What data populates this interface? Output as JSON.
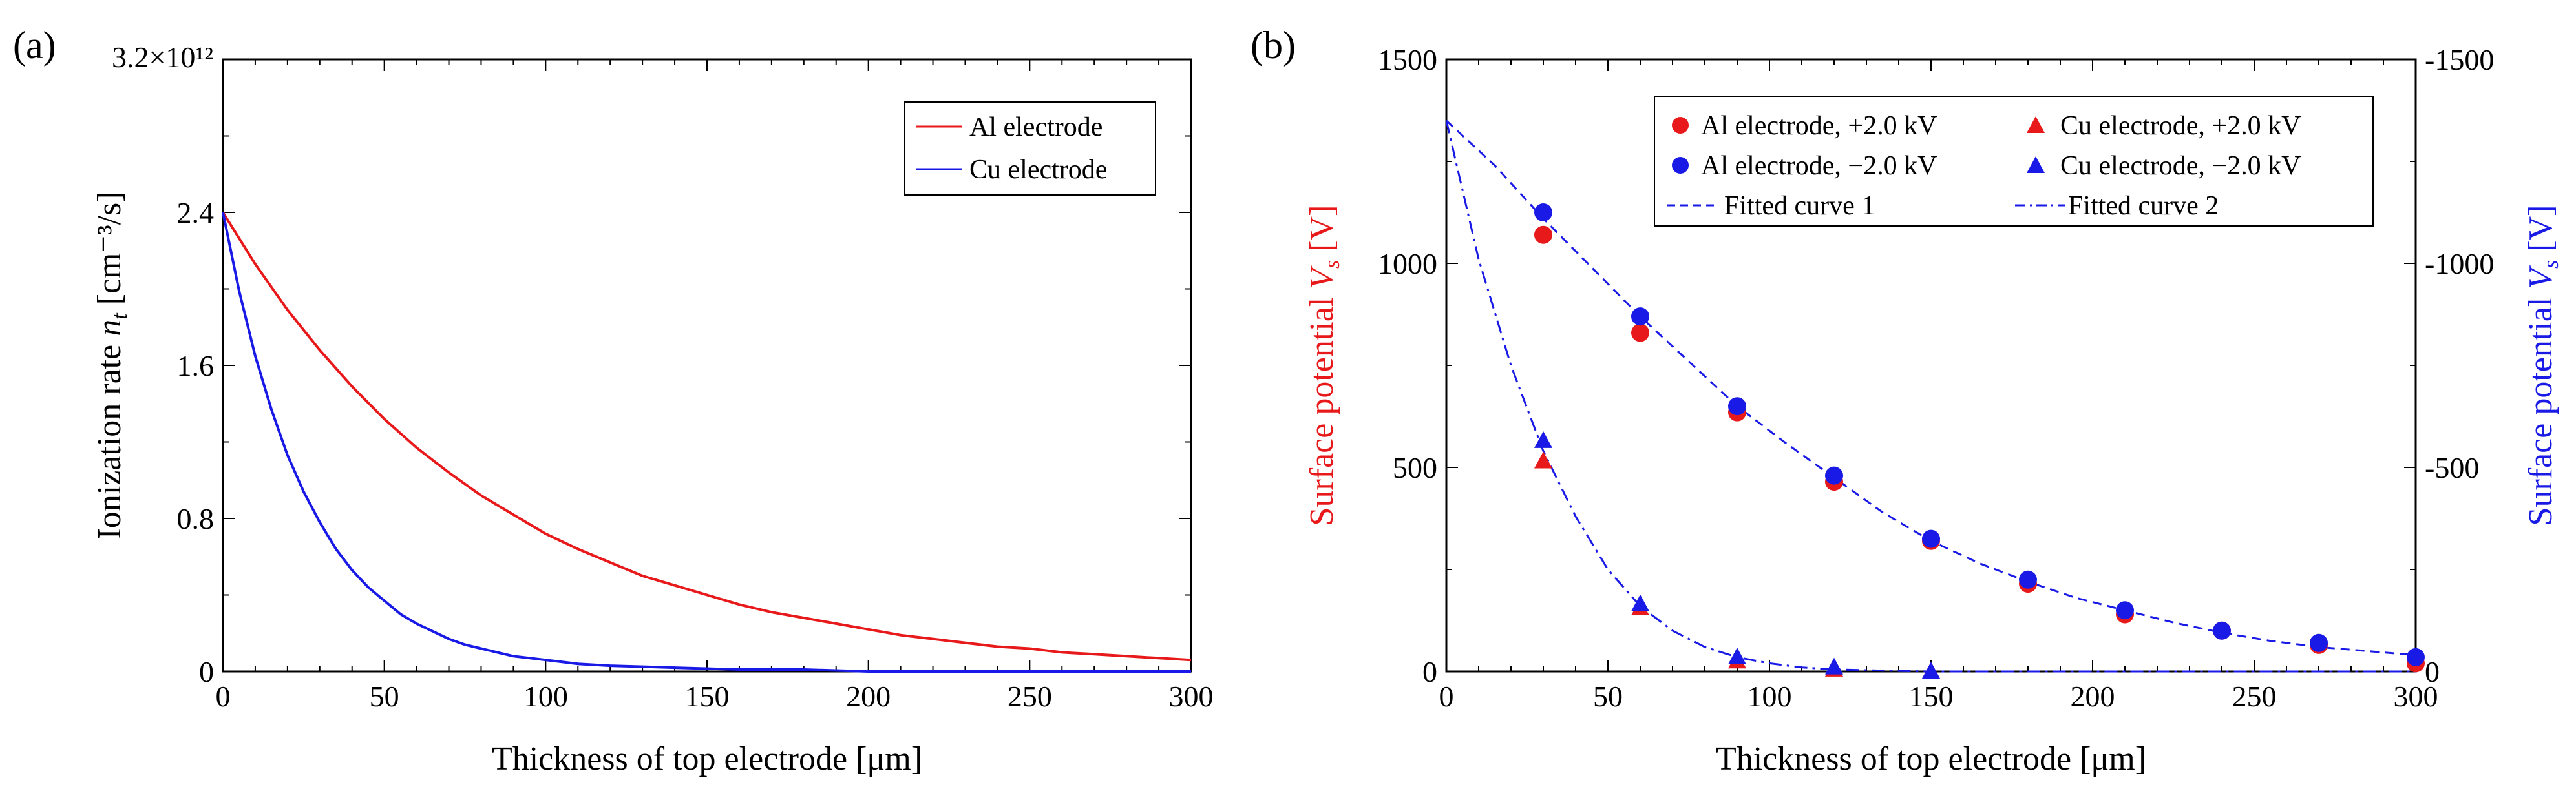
{
  "chart_data": [
    {
      "panel": "(a)",
      "type": "line",
      "xlabel": "Thickness of top electrode [μm]",
      "ylabel": "Ionization rate n_t [cm⁻³/s]",
      "ylabel_parts": {
        "prefix": "Ionization rate ",
        "var": "n",
        "sub": "t",
        "suffix": " [cm⁻³/s]"
      },
      "xlim": [
        0,
        300
      ],
      "ylim": [
        0,
        3.2
      ],
      "xticks": [
        0,
        50,
        100,
        150,
        200,
        250,
        300
      ],
      "xtick_labels": [
        "0",
        "50",
        "100",
        "150",
        "200",
        "250",
        "300"
      ],
      "yticks": [
        0,
        0.8,
        1.6,
        2.4
      ],
      "ytick_labels": [
        "0",
        "0.8",
        "1.6",
        "2.4"
      ],
      "ymax_label": "3.2×10¹²",
      "y_scale_note": "values in units of 10¹²",
      "legend": {
        "position": "top-right"
      },
      "series": [
        {
          "name": "Al electrode",
          "color": "#e8191a",
          "x": [
            0,
            10,
            20,
            30,
            40,
            50,
            60,
            70,
            80,
            90,
            100,
            110,
            120,
            130,
            140,
            150,
            160,
            170,
            180,
            190,
            200,
            210,
            220,
            230,
            240,
            250,
            260,
            270,
            280,
            290,
            300
          ],
          "y": [
            2.4,
            2.13,
            1.89,
            1.68,
            1.49,
            1.32,
            1.17,
            1.04,
            0.92,
            0.82,
            0.72,
            0.64,
            0.57,
            0.5,
            0.45,
            0.4,
            0.35,
            0.31,
            0.28,
            0.25,
            0.22,
            0.19,
            0.17,
            0.15,
            0.13,
            0.12,
            0.1,
            0.09,
            0.08,
            0.07,
            0.06
          ]
        },
        {
          "name": "Cu electrode",
          "color": "#1a1ae6",
          "x": [
            0,
            5,
            10,
            15,
            20,
            25,
            30,
            35,
            40,
            45,
            50,
            55,
            60,
            65,
            70,
            75,
            80,
            90,
            100,
            110,
            120,
            140,
            160,
            180,
            200,
            250,
            300
          ],
          "y": [
            2.4,
            1.99,
            1.65,
            1.37,
            1.13,
            0.94,
            0.78,
            0.64,
            0.53,
            0.44,
            0.37,
            0.3,
            0.25,
            0.21,
            0.17,
            0.14,
            0.12,
            0.08,
            0.06,
            0.04,
            0.03,
            0.02,
            0.01,
            0.01,
            0.0,
            0.0,
            0.0
          ]
        }
      ]
    },
    {
      "panel": "(b)",
      "type": "scatter",
      "xlabel": "Thickness of top electrode [μm]",
      "ylabel_left": "Surface potential V_s [V]",
      "ylabel_left_parts": {
        "prefix": "Surface potential ",
        "var": "V",
        "sub": "s",
        "suffix": " [V]"
      },
      "ylabel_left_color": "#e8191a",
      "ylabel_right": "Surface potential V_s [V]",
      "ylabel_right_parts": {
        "prefix": "Surface potential ",
        "var": "V",
        "sub": "s",
        "suffix": " [V]"
      },
      "ylabel_right_color": "#1a1ae6",
      "xlim": [
        0,
        300
      ],
      "ylim_left": [
        0,
        1500
      ],
      "ylim_right": [
        0,
        -1500
      ],
      "xticks": [
        0,
        50,
        100,
        150,
        200,
        250,
        300
      ],
      "xtick_labels": [
        "0",
        "50",
        "100",
        "150",
        "200",
        "250",
        "300"
      ],
      "yticks_left": [
        0,
        500,
        1000,
        1500
      ],
      "ytick_labels_left": [
        "0",
        "500",
        "1000",
        "1500"
      ],
      "yticks_right": [
        0,
        -500,
        -1000,
        -1500
      ],
      "ytick_labels_right": [
        "0",
        "-500",
        "-1000",
        "-1500"
      ],
      "legend": {
        "position": "top-right"
      },
      "series": [
        {
          "name": "Al electrode, +2.0 kV",
          "marker": "circle",
          "color": "#e8191a",
          "axis": "left",
          "x": [
            30,
            60,
            90,
            120,
            150,
            180,
            210,
            240,
            270,
            300
          ],
          "y": [
            1070,
            830,
            635,
            465,
            320,
            215,
            140,
            100,
            65,
            20
          ]
        },
        {
          "name": "Al electrode, −2.0 kV",
          "marker": "circle",
          "color": "#1a1ae6",
          "axis": "right",
          "x": [
            30,
            60,
            90,
            120,
            150,
            180,
            210,
            240,
            270,
            300
          ],
          "y": [
            -1125,
            -870,
            -650,
            -480,
            -325,
            -225,
            -150,
            -100,
            -70,
            -35
          ]
        },
        {
          "name": "Cu electrode, +2.0 kV",
          "marker": "triangle",
          "color": "#e8191a",
          "axis": "left",
          "x": [
            30,
            60,
            90,
            120,
            150
          ],
          "y": [
            515,
            155,
            25,
            5,
            0
          ]
        },
        {
          "name": "Cu electrode, −2.0 kV",
          "marker": "triangle",
          "color": "#1a1ae6",
          "axis": "right",
          "x": [
            30,
            60,
            90,
            120,
            150
          ],
          "y": [
            -565,
            -165,
            -35,
            -10,
            0
          ]
        },
        {
          "name": "Fitted curve 1",
          "line": "dashed",
          "color": "#1a1ae6",
          "axis": "left",
          "x": [
            0,
            15,
            30,
            45,
            60,
            75,
            90,
            105,
            120,
            135,
            150,
            165,
            180,
            195,
            210,
            225,
            240,
            255,
            270,
            285,
            300
          ],
          "y": [
            1350,
            1240,
            1110,
            990,
            870,
            760,
            650,
            560,
            475,
            390,
            320,
            265,
            220,
            180,
            150,
            120,
            95,
            75,
            60,
            50,
            40
          ]
        },
        {
          "name": "Fitted curve 2",
          "line": "dashdot",
          "color": "#1a1ae6",
          "axis": "left",
          "x": [
            0,
            10,
            20,
            30,
            40,
            50,
            60,
            70,
            80,
            90,
            100,
            110,
            120,
            135,
            150,
            200,
            250,
            300
          ],
          "y": [
            1350,
            1010,
            750,
            540,
            380,
            250,
            160,
            100,
            60,
            35,
            20,
            10,
            5,
            2,
            0,
            0,
            0,
            0
          ]
        }
      ],
      "legend_entries": [
        "Al electrode, +2.0 kV",
        "Cu electrode, +2.0 kV",
        "Al electrode, −2.0 kV",
        "Cu electrode, −2.0 kV",
        "Fitted curve 1",
        "Fitted curve 2"
      ]
    }
  ]
}
